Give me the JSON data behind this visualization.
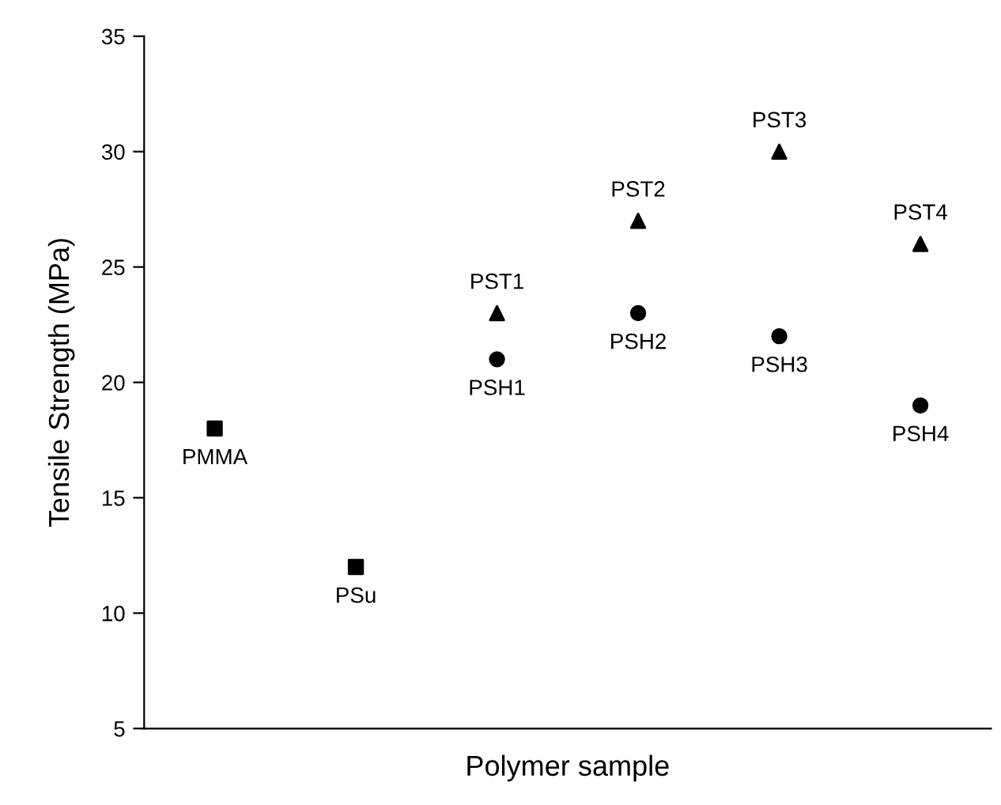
{
  "chart_data": {
    "type": "scatter",
    "xlabel": "Polymer sample",
    "ylabel": "Tensile Strength (MPa)",
    "categories": [
      null,
      null,
      null,
      null,
      null,
      null
    ],
    "series": [
      {
        "color": "#000000",
        "marker": "square",
        "values": [
          18,
          12,
          null,
          null,
          null,
          null
        ]
      },
      {
        "color": "#000000",
        "marker": "triangle",
        "values": [
          null,
          null,
          23,
          27,
          30,
          26
        ]
      },
      {
        "color": "#000000",
        "marker": "circle",
        "values": [
          null,
          null,
          21,
          23,
          22,
          19
        ]
      }
    ],
    "annotations": [
      {
        "text": "PMMA",
        "y": 18
      },
      {
        "text": "PSu",
        "y": 12
      },
      {
        "text": "PST1",
        "y": 23
      },
      {
        "text": "PST2",
        "y": 27
      },
      {
        "text": "PST3",
        "y": 30
      },
      {
        "text": "PST4",
        "y": 26
      },
      {
        "text": "PSH1",
        "y": 21
      },
      {
        "text": "PSH2",
        "y": 23
      },
      {
        "text": "PSH3",
        "y": 22
      },
      {
        "text": "PSH4",
        "y": 19
      }
    ],
    "ylim": [
      5,
      35
    ],
    "yticks": [
      5,
      10,
      15,
      20,
      25,
      30,
      35
    ],
    "tick_labels": "y",
    "grid": false,
    "legend": false
  }
}
